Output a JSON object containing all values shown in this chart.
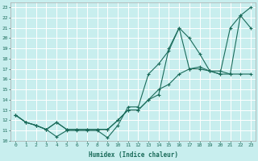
{
  "xlabel": "Humidex (Indice chaleur)",
  "bg_color": "#c8eeee",
  "grid_color": "#ffffff",
  "line_color": "#1a6b5a",
  "xlim": [
    -0.5,
    23.5
  ],
  "ylim": [
    10,
    23.5
  ],
  "xticks": [
    0,
    1,
    2,
    3,
    4,
    5,
    6,
    7,
    8,
    9,
    10,
    11,
    12,
    13,
    14,
    15,
    16,
    17,
    18,
    19,
    20,
    21,
    22,
    23
  ],
  "yticks": [
    10,
    11,
    12,
    13,
    14,
    15,
    16,
    17,
    18,
    19,
    20,
    21,
    22,
    23
  ],
  "series": [
    {
      "x": [
        0,
        1,
        2,
        3,
        4,
        5,
        6,
        7,
        8,
        9,
        10,
        11,
        12,
        13,
        14,
        15,
        16,
        17,
        18,
        19,
        20,
        21,
        22,
        23
      ],
      "y": [
        12.5,
        11.8,
        11.5,
        11.1,
        10.4,
        11.0,
        11.0,
        11.0,
        11.0,
        10.3,
        11.5,
        13.3,
        13.3,
        16.5,
        17.5,
        18.8,
        21.0,
        17.0,
        17.0,
        16.8,
        16.5,
        21.0,
        22.2,
        21.0
      ]
    },
    {
      "x": [
        0,
        1,
        2,
        3,
        4,
        5,
        6,
        7,
        8,
        9,
        10,
        11,
        12,
        13,
        14,
        15,
        16,
        17,
        18,
        19,
        20,
        21,
        22,
        23
      ],
      "y": [
        12.5,
        11.8,
        11.5,
        11.1,
        11.8,
        11.1,
        11.1,
        11.1,
        11.1,
        11.1,
        12.0,
        13.0,
        13.0,
        14.0,
        15.0,
        15.5,
        16.5,
        17.0,
        17.2,
        16.8,
        16.5,
        16.5,
        16.5,
        16.5
      ]
    },
    {
      "x": [
        0,
        1,
        2,
        3,
        4,
        5,
        6,
        7,
        8,
        9,
        10,
        11,
        12,
        13,
        14,
        15,
        16,
        17,
        18,
        19,
        20,
        21,
        22,
        23
      ],
      "y": [
        12.5,
        11.8,
        11.5,
        11.1,
        11.8,
        11.1,
        11.1,
        11.1,
        11.1,
        11.1,
        12.0,
        13.0,
        13.0,
        14.0,
        14.5,
        19.0,
        21.0,
        20.0,
        18.5,
        16.8,
        16.8,
        16.5,
        22.2,
        23.0
      ]
    }
  ]
}
